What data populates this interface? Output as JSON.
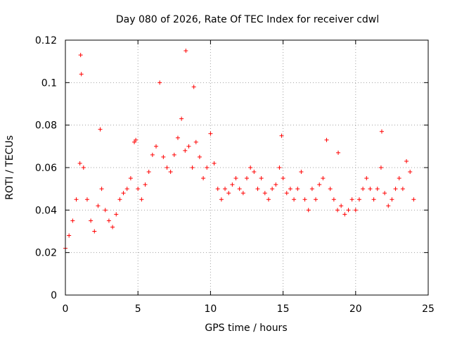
{
  "chart_data": {
    "type": "scatter",
    "title": "Day 080 of 2026, Rate Of TEC Index for receiver cdwl",
    "xlabel": "GPS time / hours",
    "ylabel": "ROTI / TECUs",
    "xlim": [
      0,
      25
    ],
    "ylim": [
      0,
      0.12
    ],
    "x_ticks": [
      "0",
      "5",
      "10",
      "15",
      "20",
      "25"
    ],
    "y_ticks": [
      "0",
      "0.02",
      "0.04",
      "0.06",
      "0.08",
      "0.1",
      "0.12"
    ],
    "grid": true,
    "legend": "none",
    "marker": "+",
    "color": "#ff0000",
    "series": [
      {
        "x": [
          0.0,
          0.25,
          0.5,
          0.75,
          1.0,
          1.05,
          1.1,
          1.25,
          1.5,
          1.75,
          2.0,
          2.25,
          2.4,
          2.5,
          2.75,
          3.0,
          3.25,
          3.5,
          3.75,
          4.0,
          4.25,
          4.5,
          4.75,
          4.85,
          5.0,
          5.25,
          5.5,
          5.75,
          6.0,
          6.25,
          6.5,
          6.75,
          7.0,
          7.25,
          7.5,
          7.75,
          8.0,
          8.25,
          8.3,
          8.5,
          8.75,
          8.85,
          9.0,
          9.25,
          9.5,
          9.75,
          10.0,
          10.25,
          10.5,
          10.75,
          11.0,
          11.25,
          11.5,
          11.75,
          12.0,
          12.25,
          12.5,
          12.75,
          13.0,
          13.25,
          13.5,
          13.75,
          14.0,
          14.25,
          14.5,
          14.75,
          14.9,
          15.0,
          15.25,
          15.5,
          15.75,
          16.0,
          16.25,
          16.5,
          16.75,
          17.0,
          17.25,
          17.5,
          17.75,
          18.0,
          18.25,
          18.5,
          18.75,
          18.8,
          19.0,
          19.25,
          19.5,
          19.75,
          20.0,
          20.25,
          20.5,
          20.75,
          21.0,
          21.25,
          21.5,
          21.75,
          21.8,
          22.0,
          22.25,
          22.5,
          22.75,
          23.0,
          23.25,
          23.5,
          23.75,
          24.0
        ],
        "y": [
          0.022,
          0.028,
          0.035,
          0.045,
          0.062,
          0.113,
          0.104,
          0.06,
          0.045,
          0.035,
          0.03,
          0.042,
          0.078,
          0.05,
          0.04,
          0.035,
          0.032,
          0.038,
          0.045,
          0.048,
          0.05,
          0.055,
          0.072,
          0.073,
          0.05,
          0.045,
          0.052,
          0.058,
          0.066,
          0.07,
          0.1,
          0.065,
          0.06,
          0.058,
          0.066,
          0.074,
          0.083,
          0.068,
          0.115,
          0.07,
          0.06,
          0.098,
          0.072,
          0.065,
          0.055,
          0.06,
          0.076,
          0.062,
          0.05,
          0.045,
          0.05,
          0.048,
          0.052,
          0.055,
          0.05,
          0.048,
          0.055,
          0.06,
          0.058,
          0.05,
          0.055,
          0.048,
          0.045,
          0.05,
          0.052,
          0.06,
          0.075,
          0.055,
          0.048,
          0.05,
          0.045,
          0.05,
          0.058,
          0.045,
          0.04,
          0.05,
          0.045,
          0.052,
          0.055,
          0.073,
          0.05,
          0.045,
          0.04,
          0.067,
          0.042,
          0.038,
          0.04,
          0.045,
          0.04,
          0.045,
          0.05,
          0.055,
          0.05,
          0.045,
          0.05,
          0.06,
          0.077,
          0.048,
          0.042,
          0.045,
          0.05,
          0.055,
          0.05,
          0.063,
          0.058,
          0.045
        ]
      }
    ]
  }
}
